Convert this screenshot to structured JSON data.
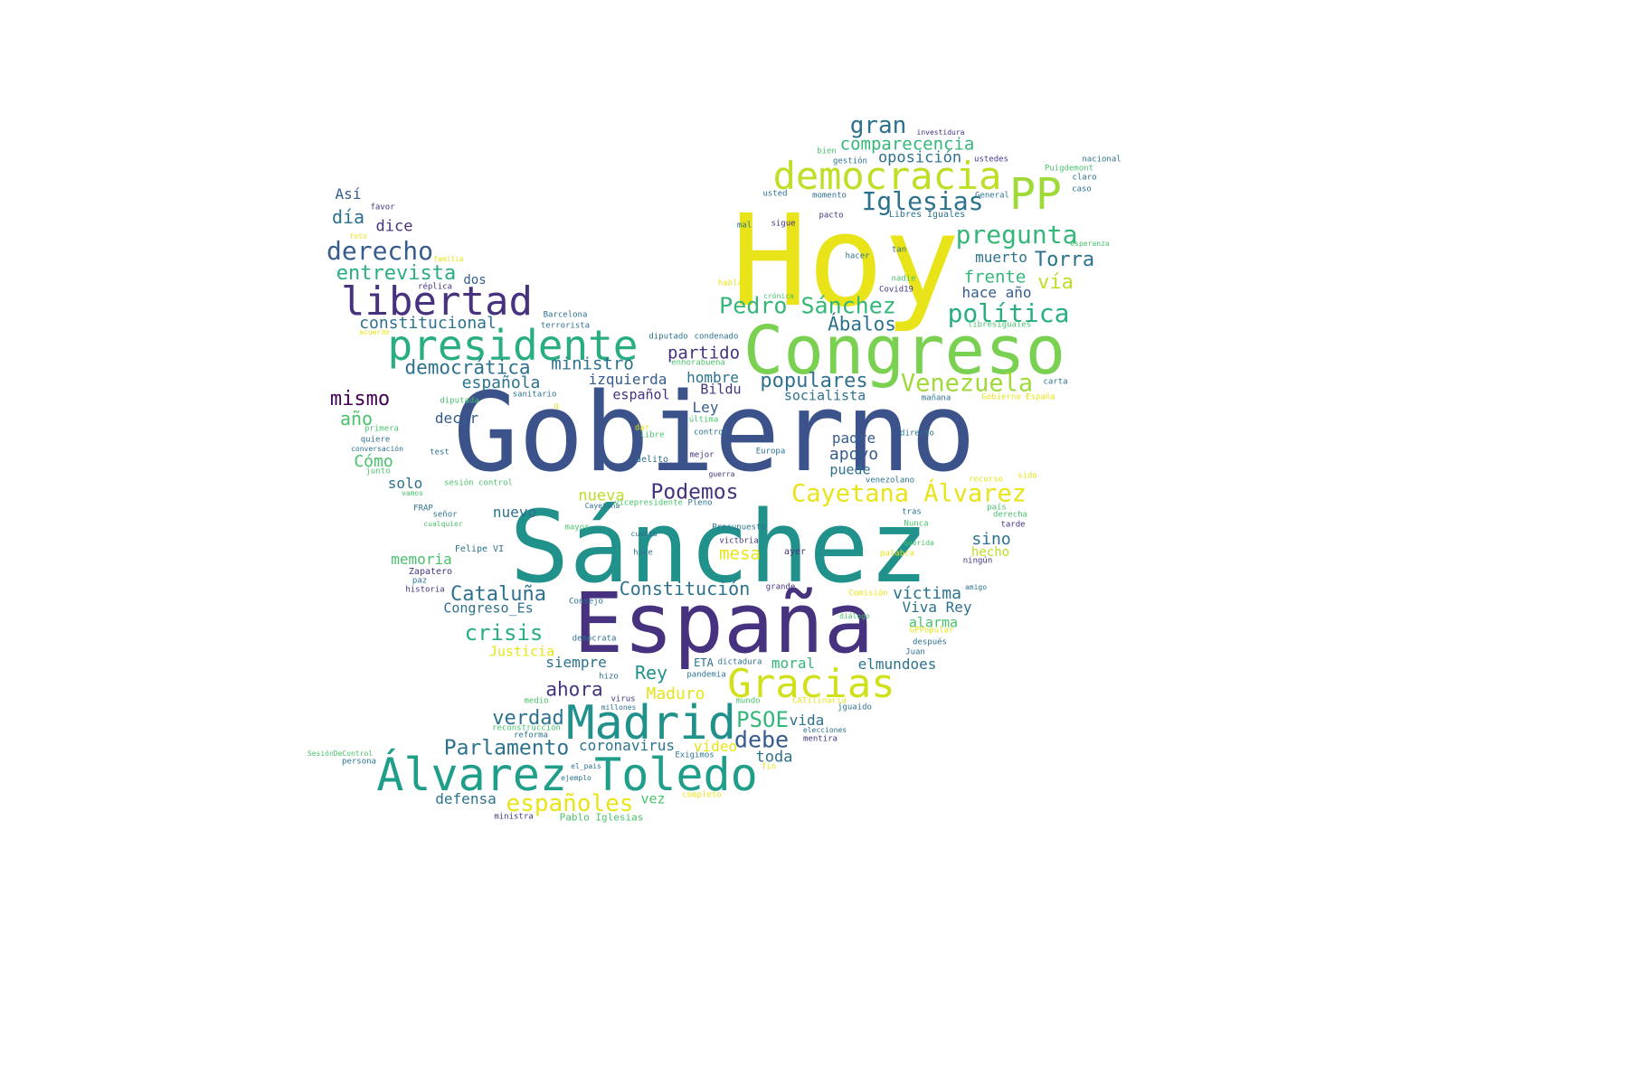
{
  "palette": {
    "dark_purple": "#46327e",
    "navy": "#3b528b",
    "steel": "#365c8d",
    "blue": "#2c728e",
    "teal": "#21918c",
    "green_teal": "#1fa187",
    "green": "#28ae80",
    "light_green": "#4ac16d",
    "lime": "#a0da39",
    "yellow": "#e8e419",
    "deep_purple": "#440154"
  },
  "words": [
    {
      "text": "Gobierno",
      "color": "#3b528b"
    },
    {
      "text": "Sánchez",
      "color": "#21918c"
    },
    {
      "text": "Hoy",
      "color": "#e8e419"
    },
    {
      "text": "Congreso",
      "color": "#7ad151"
    },
    {
      "text": "España",
      "color": "#46327e"
    },
    {
      "text": "presidente",
      "color": "#28ae80"
    },
    {
      "text": "Madrid",
      "color": "#21918c"
    },
    {
      "text": "Álvarez Toledo",
      "color": "#1f9e89"
    },
    {
      "text": "libertad",
      "color": "#46327e"
    },
    {
      "text": "democracia",
      "color": "#bddf26"
    },
    {
      "text": "PP",
      "color": "#a0da39"
    },
    {
      "text": "Gracias",
      "color": "#d0e11c"
    },
    {
      "text": "Cayetana Álvarez",
      "color": "#e8e419"
    },
    {
      "text": "Iglesias",
      "color": "#2c728e"
    },
    {
      "text": "política",
      "color": "#28ae80"
    },
    {
      "text": "pregunta",
      "color": "#35b779"
    },
    {
      "text": "Pedro Sánchez",
      "color": "#35b779"
    },
    {
      "text": "derecho",
      "color": "#365c8d"
    },
    {
      "text": "Venezuela",
      "color": "#a0da39"
    },
    {
      "text": "gran",
      "color": "#2c728e"
    },
    {
      "text": "comparecencia",
      "color": "#35b779"
    },
    {
      "text": "oposición",
      "color": "#2c728e"
    },
    {
      "text": "Torra",
      "color": "#2c728e"
    },
    {
      "text": "vía",
      "color": "#bddf26"
    },
    {
      "text": "frente",
      "color": "#35b779"
    },
    {
      "text": "muerto",
      "color": "#2c728e"
    },
    {
      "text": "hace año",
      "color": "#365c8d"
    },
    {
      "text": "entrevista",
      "color": "#28ae80"
    },
    {
      "text": "constitucional",
      "color": "#2c728e"
    },
    {
      "text": "democrática",
      "color": "#2c728e"
    },
    {
      "text": "ministro",
      "color": "#2c728e"
    },
    {
      "text": "Ábalos",
      "color": "#2c728e"
    },
    {
      "text": "partido",
      "color": "#46327e"
    },
    {
      "text": "populares",
      "color": "#2c728e"
    },
    {
      "text": "española",
      "color": "#2c728e"
    },
    {
      "text": "izquierda",
      "color": "#365c8d"
    },
    {
      "text": "hombre",
      "color": "#2c728e"
    },
    {
      "text": "español",
      "color": "#46327e"
    },
    {
      "text": "Bildu",
      "color": "#46327e"
    },
    {
      "text": "socialista",
      "color": "#2c728e"
    },
    {
      "text": "mismo",
      "color": "#440154"
    },
    {
      "text": "año",
      "color": "#4ac16d"
    },
    {
      "text": "decir",
      "color": "#365c8d"
    },
    {
      "text": "Ley",
      "color": "#365c8d"
    },
    {
      "text": "padre",
      "color": "#365c8d"
    },
    {
      "text": "apoyo",
      "color": "#365c8d"
    },
    {
      "text": "puede",
      "color": "#2c728e"
    },
    {
      "text": "Cómo",
      "color": "#4ac16d"
    },
    {
      "text": "solo",
      "color": "#2c728e"
    },
    {
      "text": "Podemos",
      "color": "#46327e"
    },
    {
      "text": "nueva",
      "color": "#bddf26"
    },
    {
      "text": "nuevo",
      "color": "#2c728e"
    },
    {
      "text": "mesa",
      "color": "#e8e419"
    },
    {
      "text": "sino",
      "color": "#2c728e"
    },
    {
      "text": "hecho",
      "color": "#bddf26"
    },
    {
      "text": "memoria",
      "color": "#4ac16d"
    },
    {
      "text": "Cataluña",
      "color": "#2c728e"
    },
    {
      "text": "Congreso_Es",
      "color": "#2c728e"
    },
    {
      "text": "Constitución",
      "color": "#2c728e"
    },
    {
      "text": "víctima",
      "color": "#2c728e"
    },
    {
      "text": "Viva Rey",
      "color": "#2c728e"
    },
    {
      "text": "alarma",
      "color": "#4ac16d"
    },
    {
      "text": "crisis",
      "color": "#28ae80"
    },
    {
      "text": "Justicia",
      "color": "#e8e419"
    },
    {
      "text": "siempre",
      "color": "#2c728e"
    },
    {
      "text": "moral",
      "color": "#35b779"
    },
    {
      "text": "elmundoes",
      "color": "#2c728e"
    },
    {
      "text": "Rey",
      "color": "#21918c"
    },
    {
      "text": "ahora",
      "color": "#46327e"
    },
    {
      "text": "Maduro",
      "color": "#e8e419"
    },
    {
      "text": "PSOE",
      "color": "#35b779"
    },
    {
      "text": "vida",
      "color": "#2c728e"
    },
    {
      "text": "debe",
      "color": "#365c8d"
    },
    {
      "text": "verdad",
      "color": "#2c728e"
    },
    {
      "text": "Parlamento",
      "color": "#2c728e"
    },
    {
      "text": "coronavirus",
      "color": "#2c728e"
    },
    {
      "text": "vídeo",
      "color": "#e8e419"
    },
    {
      "text": "toda",
      "color": "#2c728e"
    },
    {
      "text": "españoles",
      "color": "#e8e419"
    },
    {
      "text": "defensa",
      "color": "#2c728e"
    },
    {
      "text": "vez",
      "color": "#4ac16d"
    },
    {
      "text": "Así",
      "color": "#365c8d"
    },
    {
      "text": "día",
      "color": "#2c728e"
    },
    {
      "text": "dice",
      "color": "#46327e"
    },
    {
      "text": "dos",
      "color": "#365c8d"
    },
    {
      "text": "favor",
      "color": "#46327e"
    },
    {
      "text": "foto",
      "color": "#e8e419"
    },
    {
      "text": "familia",
      "color": "#e8e419"
    },
    {
      "text": "acuerdo",
      "color": "#e8e419"
    },
    {
      "text": "Barcelona",
      "color": "#2c728e"
    },
    {
      "text": "terrorista",
      "color": "#2c728e"
    },
    {
      "text": "diputado",
      "color": "#2c728e"
    },
    {
      "text": "condenado",
      "color": "#2c728e"
    },
    {
      "text": "enhorabuena",
      "color": "#4ac16d"
    },
    {
      "text": "diputada",
      "color": "#4ac16d"
    },
    {
      "text": "sanitario",
      "color": "#2c728e"
    },
    {
      "text": "primera",
      "color": "#4ac16d"
    },
    {
      "text": "quiere",
      "color": "#2c728e"
    },
    {
      "text": "conversación",
      "color": "#2c728e"
    },
    {
      "text": "test",
      "color": "#2c728e"
    },
    {
      "text": "junto",
      "color": "#4ac16d"
    },
    {
      "text": "sesión control",
      "color": "#4ac16d"
    },
    {
      "text": "vamos",
      "color": "#4ac16d"
    },
    {
      "text": "FRAP",
      "color": "#2c728e"
    },
    {
      "text": "señor",
      "color": "#2c728e"
    },
    {
      "text": "cualquier",
      "color": "#4ac16d"
    },
    {
      "text": "Felipe VI",
      "color": "#2c728e"
    },
    {
      "text": "Zapatero",
      "color": "#46327e"
    },
    {
      "text": "paz",
      "color": "#2c728e"
    },
    {
      "text": "historia",
      "color": "#46327e"
    },
    {
      "text": "réplica",
      "color": "#46327e"
    },
    {
      "text": "q",
      "color": "#e8e419"
    },
    {
      "text": "dar",
      "color": "#e8e419"
    },
    {
      "text": "libre",
      "color": "#4ac16d"
    },
    {
      "text": "última",
      "color": "#4ac16d"
    },
    {
      "text": "control",
      "color": "#2c728e"
    },
    {
      "text": "delito",
      "color": "#2c728e"
    },
    {
      "text": "mejor",
      "color": "#46327e"
    },
    {
      "text": "Europa",
      "color": "#2c728e"
    },
    {
      "text": "guerra",
      "color": "#46327e"
    },
    {
      "text": "vicepresidente",
      "color": "#4ac16d"
    },
    {
      "text": "Cayetana",
      "color": "#2c728e"
    },
    {
      "text": "Pleno",
      "color": "#2c728e"
    },
    {
      "text": "mayor",
      "color": "#4ac16d"
    },
    {
      "text": "Presupuesto",
      "color": "#2c728e"
    },
    {
      "text": "cuenta",
      "color": "#2c728e"
    },
    {
      "text": "victoria",
      "color": "#46327e"
    },
    {
      "text": "hace",
      "color": "#2c728e"
    },
    {
      "text": "ayer",
      "color": "#46327e"
    },
    {
      "text": "grande",
      "color": "#46327e"
    },
    {
      "text": "Consejo",
      "color": "#2c728e"
    },
    {
      "text": "demócrata",
      "color": "#2c728e"
    },
    {
      "text": "dictadura",
      "color": "#2c728e"
    },
    {
      "text": "ETA",
      "color": "#2c728e"
    },
    {
      "text": "pandemia",
      "color": "#2c728e"
    },
    {
      "text": "hizo",
      "color": "#2c728e"
    },
    {
      "text": "medio",
      "color": "#4ac16d"
    },
    {
      "text": "virus",
      "color": "#46327e"
    },
    {
      "text": "millones",
      "color": "#2c728e"
    },
    {
      "text": "mundo",
      "color": "#4ac16d"
    },
    {
      "text": "reconstrucción",
      "color": "#4ac16d"
    },
    {
      "text": "reforma",
      "color": "#2c728e"
    },
    {
      "text": "Exigimos",
      "color": "#2c728e"
    },
    {
      "text": "SesiónDeControl",
      "color": "#4ac16d"
    },
    {
      "text": "persona",
      "color": "#2c728e"
    },
    {
      "text": "el_pais",
      "color": "#2c728e"
    },
    {
      "text": "ejemplo",
      "color": "#2c728e"
    },
    {
      "text": "completo",
      "color": "#e8e419"
    },
    {
      "text": "fin",
      "color": "#e8e419"
    },
    {
      "text": "ministra",
      "color": "#46327e"
    },
    {
      "text": "Pablo Iglesias",
      "color": "#4ac16d"
    },
    {
      "text": "investidura",
      "color": "#46327e"
    },
    {
      "text": "bien",
      "color": "#4ac16d"
    },
    {
      "text": "gestión",
      "color": "#2c728e"
    },
    {
      "text": "ustedes",
      "color": "#46327e"
    },
    {
      "text": "nacional",
      "color": "#2c728e"
    },
    {
      "text": "Puigdemont",
      "color": "#4ac16d"
    },
    {
      "text": "claro",
      "color": "#2c728e"
    },
    {
      "text": "caso",
      "color": "#2c728e"
    },
    {
      "text": "usted",
      "color": "#2c728e"
    },
    {
      "text": "momento",
      "color": "#2c728e"
    },
    {
      "text": "General",
      "color": "#2c728e"
    },
    {
      "text": "mal",
      "color": "#2c728e"
    },
    {
      "text": "sigue",
      "color": "#46327e"
    },
    {
      "text": "pacto",
      "color": "#46327e"
    },
    {
      "text": "Libres Iguales",
      "color": "#2c728e"
    },
    {
      "text": "tan",
      "color": "#2c728e"
    },
    {
      "text": "esperanza",
      "color": "#4ac16d"
    },
    {
      "text": "hacer",
      "color": "#2c728e"
    },
    {
      "text": "hablar",
      "color": "#e8e419"
    },
    {
      "text": "nadie",
      "color": "#4ac16d"
    },
    {
      "text": "crónica",
      "color": "#4ac16d"
    },
    {
      "text": "Covid19",
      "color": "#46327e"
    },
    {
      "text": "libresiguales",
      "color": "#4ac16d"
    },
    {
      "text": "carta",
      "color": "#2c728e"
    },
    {
      "text": "mañana",
      "color": "#2c728e"
    },
    {
      "text": "Gobierno España",
      "color": "#e8e419"
    },
    {
      "text": "directo",
      "color": "#2c728e"
    },
    {
      "text": "venezolano",
      "color": "#2c728e"
    },
    {
      "text": "recurso",
      "color": "#e8e419"
    },
    {
      "text": "sido",
      "color": "#e8e419"
    },
    {
      "text": "país",
      "color": "#4ac16d"
    },
    {
      "text": "derecha",
      "color": "#4ac16d"
    },
    {
      "text": "tarde",
      "color": "#46327e"
    },
    {
      "text": "tras",
      "color": "#2c728e"
    },
    {
      "text": "Nunca",
      "color": "#4ac16d"
    },
    {
      "text": "querida",
      "color": "#4ac16d"
    },
    {
      "text": "palabra",
      "color": "#e8e419"
    },
    {
      "text": "ningún",
      "color": "#46327e"
    },
    {
      "text": "amigo",
      "color": "#2c728e"
    },
    {
      "text": "Comisión",
      "color": "#e8e419"
    },
    {
      "text": "diálogo",
      "color": "#4ac16d"
    },
    {
      "text": "GPPopular",
      "color": "#e8e419"
    },
    {
      "text": "después",
      "color": "#2c728e"
    },
    {
      "text": "Juan",
      "color": "#2c728e"
    },
    {
      "text": "CATilinaria",
      "color": "#e8e419"
    },
    {
      "text": "jguaido",
      "color": "#2c728e"
    },
    {
      "text": "elecciones",
      "color": "#2c728e"
    },
    {
      "text": "mentira",
      "color": "#46327e"
    }
  ]
}
